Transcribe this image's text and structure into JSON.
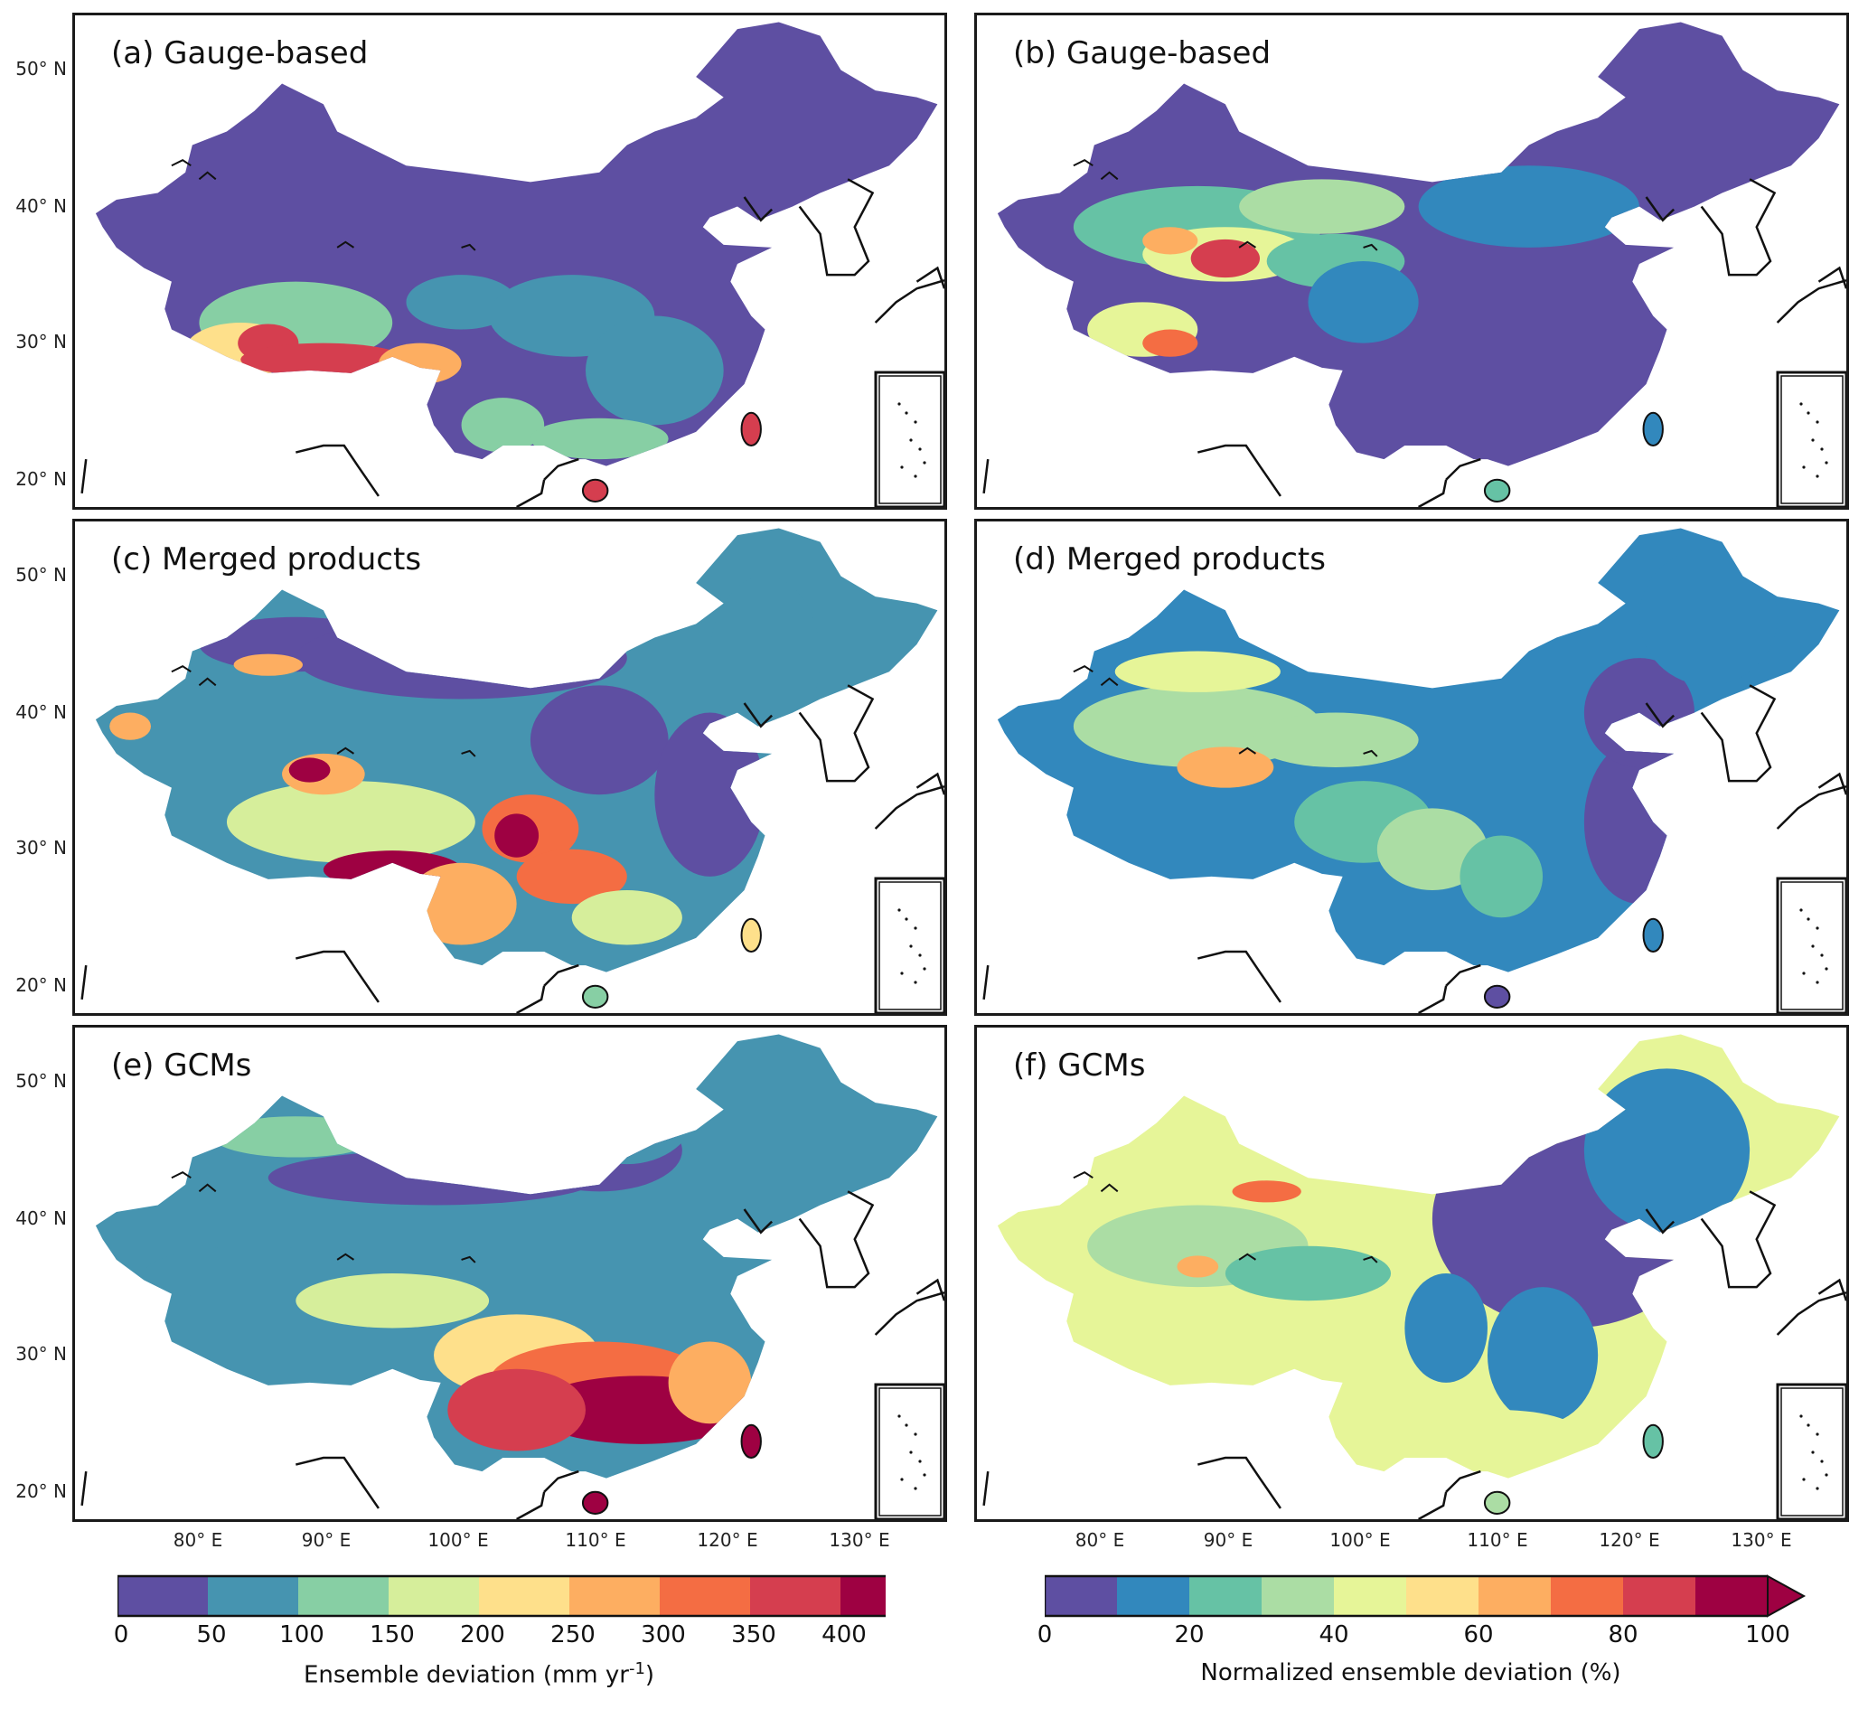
{
  "panels": [
    {
      "id": "a",
      "label": "(a) Gauge-based",
      "scale": "absolute"
    },
    {
      "id": "b",
      "label": "(b) Gauge-based",
      "scale": "normalized"
    },
    {
      "id": "c",
      "label": "(c) Merged products",
      "scale": "absolute"
    },
    {
      "id": "d",
      "label": "(d) Merged products",
      "scale": "normalized"
    },
    {
      "id": "e",
      "label": "(e) GCMs",
      "scale": "absolute"
    },
    {
      "id": "f",
      "label": "(f) GCMs",
      "scale": "normalized"
    }
  ],
  "lat_ticks": [
    "50° N",
    "40° N",
    "30° N",
    "20° N"
  ],
  "lon_ticks": [
    "80° E",
    "90° E",
    "100° E",
    "110° E",
    "120° E",
    "130° E"
  ],
  "colorbar_left": {
    "ticks": [
      "0",
      "50",
      "100",
      "150",
      "200",
      "250",
      "300",
      "350",
      "400"
    ],
    "label_main": "Ensemble deviation (mm yr",
    "label_sup": "-1",
    "label_end": ")",
    "colors": [
      "#5e4fa2",
      "#4694b0",
      "#87cfa4",
      "#d6ee9b",
      "#fee08b",
      "#fdae61",
      "#f46d43",
      "#d53e4f",
      "#9e0142"
    ]
  },
  "colorbar_right": {
    "ticks": [
      "0",
      "20",
      "40",
      "60",
      "80",
      "100"
    ],
    "label": "Normalized ensemble deviation (%)",
    "colors": [
      "#5e4fa2",
      "#3288bd",
      "#66c2a5",
      "#abdda4",
      "#e6f598",
      "#fee08b",
      "#fdae61",
      "#f46d43",
      "#d53e4f",
      "#9e0142"
    ]
  }
}
